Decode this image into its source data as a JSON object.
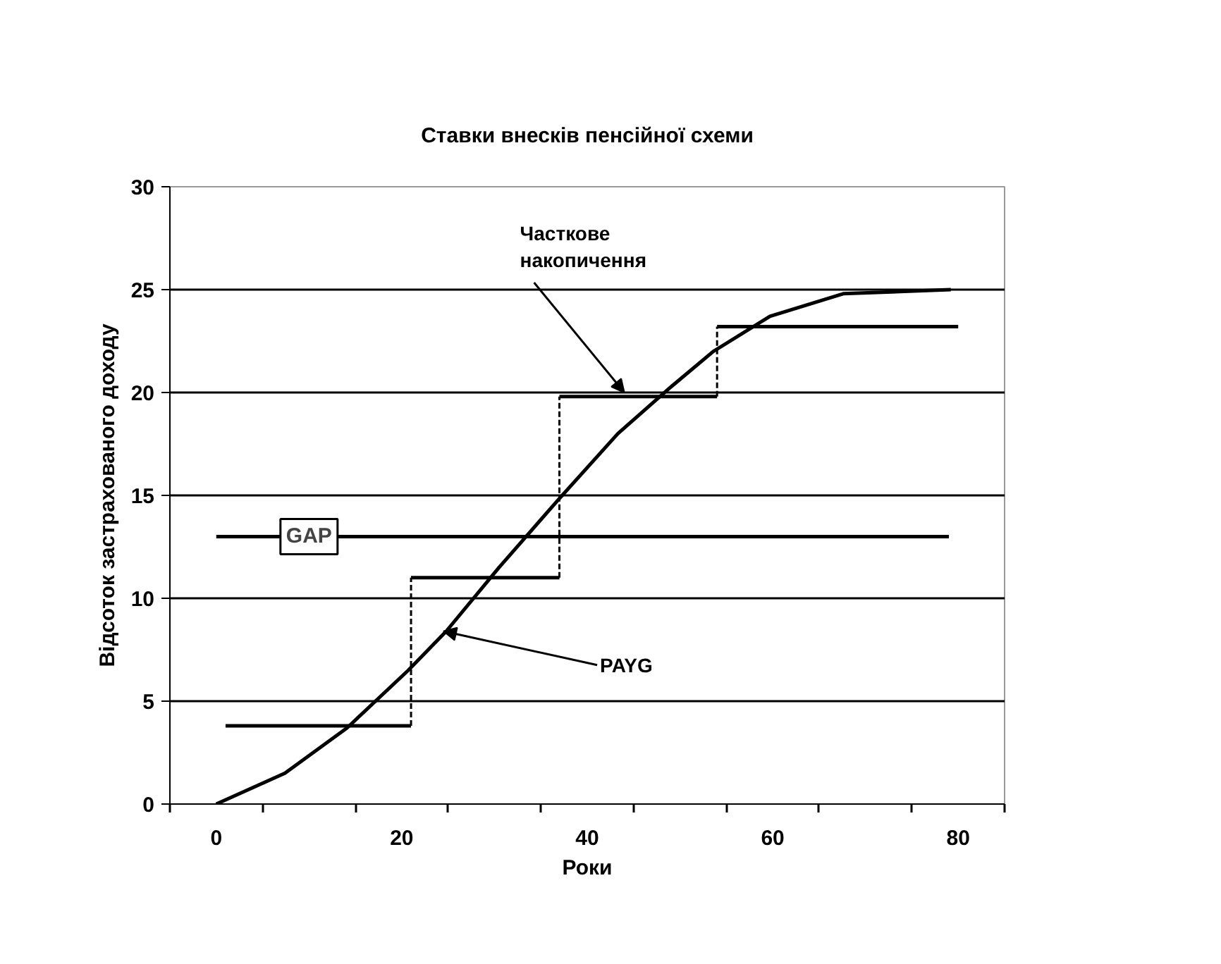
{
  "chart_data": {
    "type": "line",
    "title": "Ставки внесків пенсійної схеми",
    "xlabel": "Роки",
    "ylabel": "Відсоток застрахованого доходу",
    "xlim": [
      -5,
      85
    ],
    "ylim": [
      0,
      30
    ],
    "xticks": [
      {
        "value": -5,
        "label": null
      },
      0,
      {
        "value": 5,
        "label": null
      },
      {
        "value": 15,
        "label": null
      },
      20,
      {
        "value": 25,
        "label": null
      },
      {
        "value": 35,
        "label": null
      },
      40,
      {
        "value": 45,
        "label": null
      },
      {
        "value": 55,
        "label": null
      },
      60,
      {
        "value": 65,
        "label": null
      },
      {
        "value": 75,
        "label": null
      },
      80,
      {
        "value": 85,
        "label": null
      }
    ],
    "yticks": [
      0,
      5,
      10,
      15,
      20,
      25,
      30
    ],
    "grid": "y",
    "series": [
      {
        "color": "#000000",
        "x": [
          0,
          7.4,
          14.1,
          20.7,
          24.8,
          30.5,
          36.9,
          43.3,
          49.1,
          53.6,
          59.7,
          67.6,
          79.2
        ],
        "values": [
          0,
          1.5,
          3.7,
          6.5,
          8.4,
          11.5,
          14.8,
          18.0,
          20.3,
          22.0,
          23.7,
          24.8,
          25.0
        ]
      },
      {
        "type": "step",
        "color": "#000000",
        "x": [
          1,
          21,
          37,
          54,
          80
        ],
        "values": [
          3.8,
          11.0,
          19.8,
          23.2,
          23.2
        ]
      },
      {
        "color": "#000000",
        "x": [
          0,
          79
        ],
        "values": [
          13,
          13
        ]
      }
    ],
    "annotations": [
      {
        "text": "Часткове\nнакопичення",
        "x": 44,
        "y": 20
      },
      {
        "text": "PAYG",
        "x": 24.5,
        "y": 8.4
      },
      {
        "text": "GAP",
        "x": 10,
        "y": 13
      }
    ]
  }
}
